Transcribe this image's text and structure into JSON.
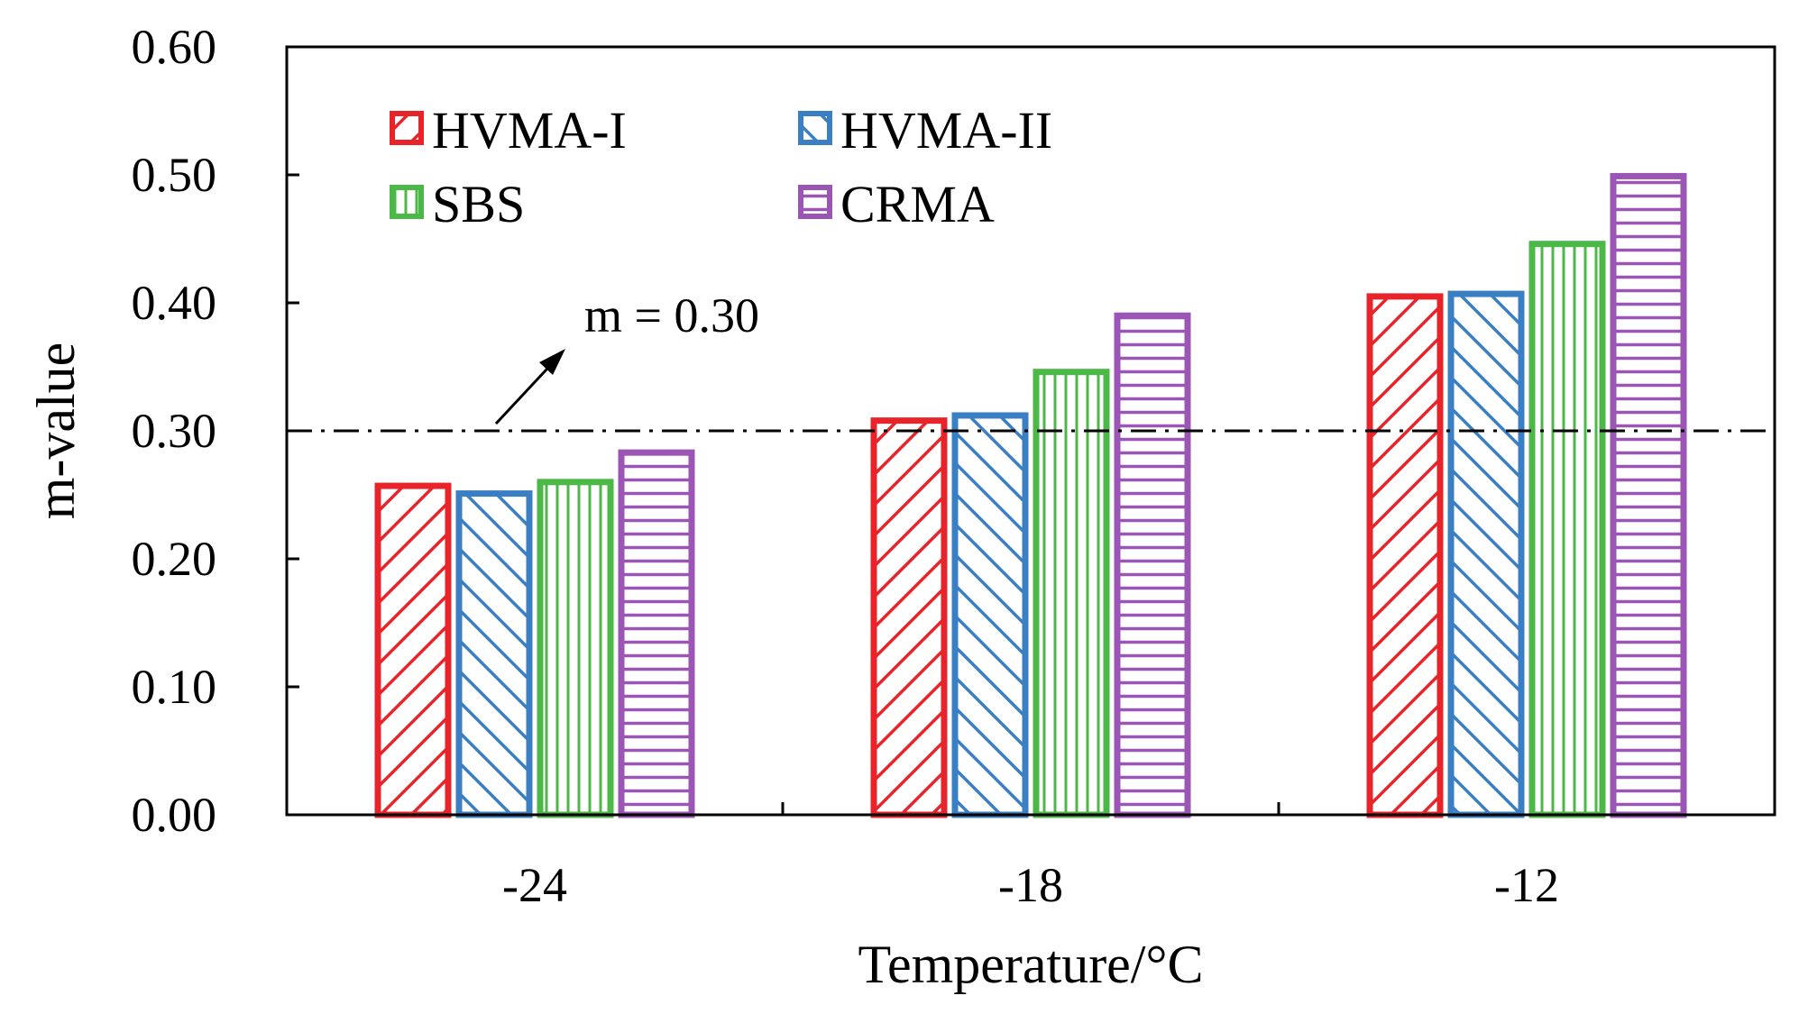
{
  "chart_data": {
    "type": "bar",
    "xlabel": "Temperature/°C",
    "ylabel": "m-value",
    "categories": [
      "-24",
      "-18",
      "-12"
    ],
    "ylim": [
      0,
      0.6
    ],
    "yticks": [
      "0.00",
      "0.10",
      "0.20",
      "0.30",
      "0.40",
      "0.50",
      "0.60"
    ],
    "series": [
      {
        "name": "HVMA-I",
        "color": "#e8242b",
        "pattern": "diag-up",
        "values": [
          0.257,
          0.308,
          0.405
        ]
      },
      {
        "name": "HVMA-II",
        "color": "#3a7fc4",
        "pattern": "diag-down",
        "values": [
          0.251,
          0.312,
          0.407
        ]
      },
      {
        "name": "SBS",
        "color": "#4cb848",
        "pattern": "vertical",
        "values": [
          0.26,
          0.346,
          0.446
        ]
      },
      {
        "name": "CRMA",
        "color": "#9b55b5",
        "pattern": "horizontal",
        "values": [
          0.283,
          0.39,
          0.499
        ]
      }
    ],
    "reference_line": {
      "value": 0.3,
      "label": "m = 0.30",
      "style": "dash-dot"
    },
    "legend_position": "top-left"
  }
}
